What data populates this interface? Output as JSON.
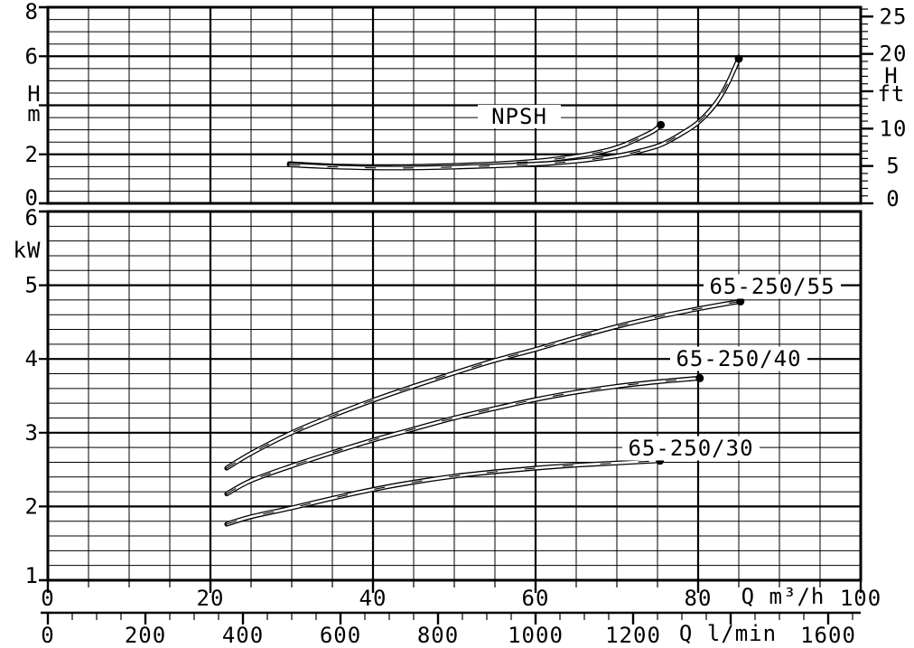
{
  "page": {
    "background": "#ffffff"
  },
  "colors": {
    "line": "#000000",
    "background": "#ffffff"
  },
  "chart_data": [
    {
      "type": "line",
      "id": "npsh-panel",
      "title": "NPSH",
      "ylabel_left": [
        "H",
        "m"
      ],
      "ylabel_right": [
        "H",
        "ft"
      ],
      "y_left": {
        "unit": "m",
        "min": 0,
        "max": 8,
        "minor_step": 0.5,
        "major_ticks": [
          0,
          2,
          4,
          6,
          8
        ],
        "tick_labels": [
          "0",
          "2",
          "",
          "6",
          "8"
        ]
      },
      "y_right": {
        "unit": "ft",
        "min": 0,
        "max": 26,
        "minor_step": 1,
        "major_ticks": [
          0,
          5,
          10,
          15,
          20,
          25
        ],
        "tick_labels": [
          "0",
          "5",
          "10",
          "",
          "20",
          "25"
        ]
      },
      "x": {
        "unit": "m3/h",
        "min": 0,
        "max": 100,
        "major_step": 20,
        "minor_step": 5
      },
      "grid": "major+minor",
      "legend": "none",
      "series": [
        {
          "name": "npsh-curve-short",
          "end_dot": true,
          "points": [
            [
              29.7,
              1.62
            ],
            [
              33,
              1.56
            ],
            [
              36,
              1.52
            ],
            [
              40,
              1.5
            ],
            [
              44,
              1.5
            ],
            [
              48,
              1.53
            ],
            [
              52,
              1.57
            ],
            [
              56,
              1.63
            ],
            [
              60,
              1.72
            ],
            [
              63,
              1.83
            ],
            [
              66,
              1.97
            ],
            [
              69,
              2.18
            ],
            [
              71,
              2.4
            ],
            [
              73,
              2.7
            ],
            [
              74.5,
              2.95
            ],
            [
              75.4,
              3.2
            ]
          ]
        },
        {
          "name": "npsh-curve-long",
          "end_dot": true,
          "points": [
            [
              29.7,
              1.57
            ],
            [
              34,
              1.5
            ],
            [
              38,
              1.46
            ],
            [
              42,
              1.44
            ],
            [
              46,
              1.45
            ],
            [
              50,
              1.48
            ],
            [
              54,
              1.52
            ],
            [
              58,
              1.57
            ],
            [
              62,
              1.64
            ],
            [
              66,
              1.76
            ],
            [
              70,
              1.93
            ],
            [
              73,
              2.15
            ],
            [
              75.5,
              2.4
            ],
            [
              78,
              2.85
            ],
            [
              80,
              3.3
            ],
            [
              82,
              4.0
            ],
            [
              83.5,
              4.8
            ],
            [
              85,
              5.9
            ]
          ]
        }
      ]
    },
    {
      "type": "line",
      "id": "power-panel",
      "title": "",
      "ylabel_left": [
        "kW"
      ],
      "y_left": {
        "unit": "kW",
        "min": 1,
        "max": 6,
        "minor_step": 0.2,
        "major_ticks": [
          1,
          2,
          3,
          4,
          5,
          6
        ],
        "tick_labels": [
          "1",
          "2",
          "3",
          "4",
          "5",
          "6"
        ]
      },
      "x": {
        "unit": "m3/h",
        "min": 0,
        "max": 100,
        "major_step": 20,
        "minor_step": 5
      },
      "grid": "major+minor",
      "legend": "inline-labels",
      "series": [
        {
          "name": "65-250-55",
          "label": "65-250/55",
          "end_dot": true,
          "points": [
            [
              22,
              2.52
            ],
            [
              25,
              2.72
            ],
            [
              30,
              3.0
            ],
            [
              35,
              3.23
            ],
            [
              40,
              3.44
            ],
            [
              45,
              3.63
            ],
            [
              50,
              3.81
            ],
            [
              55,
              3.98
            ],
            [
              60,
              4.13
            ],
            [
              65,
              4.29
            ],
            [
              70,
              4.44
            ],
            [
              75,
              4.57
            ],
            [
              80,
              4.68
            ],
            [
              83,
              4.74
            ],
            [
              85.2,
              4.78
            ]
          ]
        },
        {
          "name": "65-250-40",
          "label": "65-250/40",
          "end_dot": true,
          "points": [
            [
              22,
              2.17
            ],
            [
              25,
              2.35
            ],
            [
              30,
              2.55
            ],
            [
              35,
              2.73
            ],
            [
              40,
              2.9
            ],
            [
              45,
              3.05
            ],
            [
              50,
              3.2
            ],
            [
              55,
              3.33
            ],
            [
              60,
              3.45
            ],
            [
              65,
              3.55
            ],
            [
              70,
              3.63
            ],
            [
              75,
              3.69
            ],
            [
              80.2,
              3.74
            ]
          ]
        },
        {
          "name": "65-250-30",
          "label": "65-250/30",
          "end_dot": true,
          "points": [
            [
              22,
              1.76
            ],
            [
              25,
              1.86
            ],
            [
              30,
              1.98
            ],
            [
              35,
              2.11
            ],
            [
              40,
              2.23
            ],
            [
              45,
              2.33
            ],
            [
              50,
              2.41
            ],
            [
              55,
              2.47
            ],
            [
              60,
              2.52
            ],
            [
              65,
              2.56
            ],
            [
              70,
              2.59
            ],
            [
              75.3,
              2.62
            ]
          ]
        }
      ]
    }
  ],
  "x_axes": [
    {
      "id": "m3h",
      "unit_label": "Q m³/h",
      "ticks": [
        0,
        20,
        40,
        60,
        80,
        100
      ],
      "tick_labels": [
        "0",
        "20",
        "40",
        "60",
        "80",
        "100"
      ],
      "minor_step": 5
    },
    {
      "id": "lmin",
      "unit_label": "Q l/min",
      "ticks": [
        0,
        200,
        400,
        600,
        800,
        1000,
        1200,
        1400,
        1600
      ],
      "tick_labels": [
        "0",
        "200",
        "400",
        "600",
        "800",
        "1000",
        "1200",
        "",
        "1600"
      ],
      "minor_step": 50,
      "lmin_per_m3h": 16.6667
    }
  ]
}
